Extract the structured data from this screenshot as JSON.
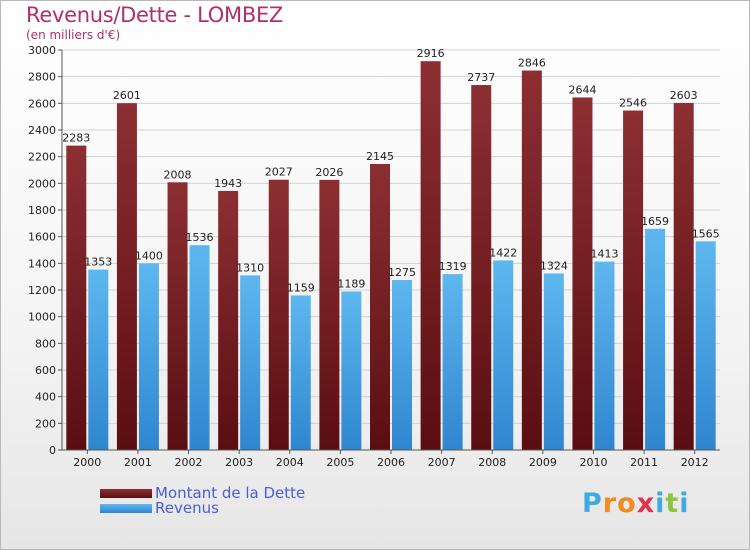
{
  "chart_data": {
    "type": "bar",
    "title": "Revenus/Dette - LOMBEZ",
    "subtitle": "(en milliers d'€)",
    "categories": [
      "2000",
      "2001",
      "2002",
      "2003",
      "2004",
      "2005",
      "2006",
      "2007",
      "2008",
      "2009",
      "2010",
      "2011",
      "2012"
    ],
    "series": [
      {
        "name": "Montant de la Dette",
        "color": "#7a1e22",
        "values": [
          2283,
          2601,
          2008,
          1943,
          2027,
          2026,
          2145,
          2916,
          2737,
          2846,
          2644,
          2546,
          2603
        ]
      },
      {
        "name": "Revenus",
        "color": "#3f9fe0",
        "values": [
          1353,
          1400,
          1536,
          1310,
          1159,
          1189,
          1275,
          1319,
          1422,
          1324,
          1413,
          1659,
          1565
        ]
      }
    ],
    "ylim": [
      0,
      3000
    ],
    "ytick_step": 200,
    "grid": true,
    "legend_position": "bottom-left"
  },
  "logo": {
    "letters": [
      "P",
      "r",
      "o",
      "x",
      "i",
      "t",
      "i"
    ],
    "colors": [
      "#3fa9e0",
      "#f28a1e",
      "#f28a1e",
      "#e0344b",
      "#3fa9e0",
      "#8cc63f",
      "#3fa9e0"
    ]
  }
}
